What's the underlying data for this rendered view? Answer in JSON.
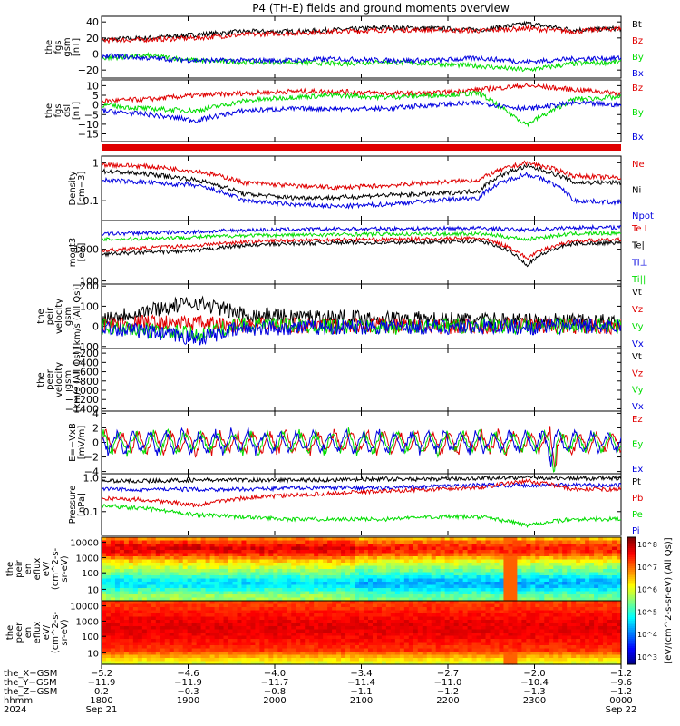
{
  "title": "P4 (TH-E) fields and ground moments overview",
  "colors": {
    "black": "#000000",
    "red": "#e00000",
    "green": "#00dd00",
    "blue": "#0000e0",
    "cyan": "#00c8ff"
  },
  "panels": [
    {
      "id": "fgs_gsm",
      "ylabel": [
        "the",
        "fgs",
        "gsm",
        "[nT]"
      ],
      "ticks": [
        "40",
        "20",
        "0",
        "−20"
      ],
      "tick_values": [
        40,
        20,
        0,
        -20
      ],
      "ylim": [
        -30,
        47
      ],
      "legend": [
        {
          "name": "Bt",
          "color": "black"
        },
        {
          "name": "Bz",
          "color": "red"
        },
        {
          "name": "By",
          "color": "green"
        },
        {
          "name": "Bx",
          "color": "blue"
        }
      ],
      "series": [
        {
          "name": "Bt",
          "color": "black",
          "base": [
            18,
            20,
            24,
            28,
            28,
            30,
            33,
            32,
            30,
            38,
            30,
            32
          ]
        },
        {
          "name": "Bz",
          "color": "red",
          "base": [
            17,
            18,
            20,
            24,
            26,
            28,
            30,
            30,
            29,
            32,
            28,
            32
          ]
        },
        {
          "name": "By",
          "color": "green",
          "base": [
            -5,
            -2,
            -8,
            -10,
            -10,
            -12,
            -10,
            -12,
            -15,
            -20,
            -12,
            -10
          ]
        },
        {
          "name": "Bx",
          "color": "blue",
          "base": [
            -2,
            -5,
            -8,
            -8,
            -8,
            -6,
            -8,
            -8,
            -5,
            -10,
            -6,
            -5
          ]
        }
      ]
    },
    {
      "id": "fgs_dsl",
      "ylabel": [
        "the",
        "fgs",
        "dsl",
        "[nT]"
      ],
      "ticks": [
        "10",
        "5",
        "0",
        "−5",
        "−10",
        "−15"
      ],
      "tick_values": [
        10,
        5,
        0,
        -5,
        -10,
        -15
      ],
      "ylim": [
        -19,
        13
      ],
      "legend": [
        {
          "name": "Bz",
          "color": "red"
        },
        {
          "name": "By",
          "color": "green"
        },
        {
          "name": "Bx",
          "color": "blue"
        }
      ],
      "series": [
        {
          "name": "Bz",
          "color": "red",
          "base": [
            2,
            3,
            5,
            6,
            7,
            7,
            6,
            6,
            8,
            10,
            8,
            6
          ]
        },
        {
          "name": "By",
          "color": "green",
          "base": [
            0,
            -2,
            -3,
            2,
            4,
            5,
            4,
            5,
            6,
            -10,
            3,
            4
          ]
        },
        {
          "name": "Bx",
          "color": "blue",
          "base": [
            -3,
            -5,
            -8,
            -3,
            -2,
            -2,
            -2,
            0,
            1,
            -2,
            1,
            0
          ]
        }
      ]
    },
    {
      "id": "density",
      "ylabel": [
        "Density",
        "[cm−3]"
      ],
      "ticks": [
        "1",
        "0.1"
      ],
      "tick_values": [
        1,
        0.1
      ],
      "ylim": [
        0.03,
        1.5
      ],
      "log": true,
      "legend": [
        {
          "name": "Ne",
          "color": "red"
        },
        {
          "name": "Ni",
          "color": "black"
        },
        {
          "name": "Npot",
          "color": "blue"
        }
      ],
      "series": [
        {
          "name": "Ne",
          "color": "red",
          "base": [
            0.9,
            0.8,
            0.6,
            0.3,
            0.25,
            0.22,
            0.25,
            0.3,
            0.35,
            1.0,
            0.45,
            0.4
          ]
        },
        {
          "name": "Ni",
          "color": "black",
          "base": [
            0.6,
            0.5,
            0.35,
            0.15,
            0.12,
            0.12,
            0.14,
            0.15,
            0.18,
            0.8,
            0.3,
            0.3
          ]
        },
        {
          "name": "Npot",
          "color": "blue",
          "base": [
            0.35,
            0.3,
            0.25,
            0.1,
            0.08,
            0.07,
            0.08,
            0.1,
            0.12,
            0.5,
            0.1,
            0.09
          ]
        }
      ]
    },
    {
      "id": "temp",
      "ylabel": [
        "moqt3",
        "[eV]"
      ],
      "ticks": [
        "1000",
        "100"
      ],
      "tick_values": [
        1000,
        100
      ],
      "ylim": [
        80,
        8000
      ],
      "log": true,
      "legend": [
        {
          "name": "Te⊥",
          "color": "red"
        },
        {
          "name": "Te||",
          "color": "black"
        },
        {
          "name": "Ti⊥",
          "color": "blue"
        },
        {
          "name": "Ti||",
          "color": "green"
        }
      ],
      "series": [
        {
          "name": "Ti⊥",
          "color": "blue",
          "base": [
            3000,
            3300,
            3500,
            4000,
            4200,
            4300,
            4400,
            4500,
            4600,
            4000,
            4800,
            4900
          ]
        },
        {
          "name": "Ti||",
          "color": "green",
          "base": [
            2000,
            2200,
            2400,
            2700,
            2800,
            2900,
            3000,
            3000,
            3100,
            2000,
            3100,
            3200
          ]
        },
        {
          "name": "Te⊥",
          "color": "red",
          "base": [
            900,
            1100,
            1300,
            1700,
            1900,
            2000,
            2000,
            2100,
            2200,
            500,
            1800,
            2000
          ]
        },
        {
          "name": "Te||",
          "color": "black",
          "base": [
            700,
            800,
            900,
            1300,
            1500,
            1600,
            1600,
            1700,
            1800,
            300,
            1500,
            1600
          ]
        }
      ]
    },
    {
      "id": "peir_vel",
      "ylabel": [
        "the",
        "peir",
        "velocity",
        "gsm",
        "[km/s (All Qs)]"
      ],
      "ticks": [
        "200",
        "100",
        "0",
        "−100"
      ],
      "tick_values": [
        200,
        100,
        0,
        -100
      ],
      "ylim": [
        -110,
        210
      ],
      "legend": [
        {
          "name": "Vt",
          "color": "black"
        },
        {
          "name": "Vz",
          "color": "red"
        },
        {
          "name": "Vy",
          "color": "green"
        },
        {
          "name": "Vx",
          "color": "blue"
        }
      ],
      "series": [
        {
          "name": "Vt",
          "color": "black",
          "base": [
            40,
            80,
            120,
            60,
            50,
            45,
            40,
            35,
            30,
            30,
            25,
            20
          ]
        },
        {
          "name": "Vz",
          "color": "red",
          "base": [
            10,
            20,
            15,
            5,
            5,
            0,
            5,
            0,
            0,
            5,
            0,
            0
          ]
        },
        {
          "name": "Vy",
          "color": "green",
          "base": [
            0,
            -20,
            -40,
            10,
            5,
            0,
            -5,
            0,
            5,
            0,
            0,
            0
          ]
        },
        {
          "name": "Vx",
          "color": "blue",
          "base": [
            0,
            -30,
            -60,
            -10,
            -5,
            -5,
            0,
            -5,
            0,
            -5,
            0,
            0
          ]
        }
      ]
    },
    {
      "id": "peer_vel",
      "ylabel": [
        "the",
        "peer",
        "velocity",
        "gsm",
        "[km/s (All Qs)]"
      ],
      "ticks": [
        "−200",
        "−400",
        "−600",
        "−800",
        "−1000",
        "−1200",
        "−1400"
      ],
      "tick_values": [
        -200,
        -400,
        -600,
        -800,
        -1000,
        -1200,
        -1400
      ],
      "ylim": [
        -1450,
        -100
      ],
      "legend": [
        {
          "name": "Vt",
          "color": "black"
        },
        {
          "name": "Vz",
          "color": "red"
        },
        {
          "name": "Vy",
          "color": "green"
        },
        {
          "name": "Vx",
          "color": "blue"
        }
      ],
      "series": []
    },
    {
      "id": "efield",
      "ylabel": [
        "E=−VxB",
        "[mV/m]"
      ],
      "ticks": [
        "4",
        "2",
        "0",
        "−2",
        "−4"
      ],
      "tick_values": [
        4,
        2,
        0,
        -2,
        -4
      ],
      "ylim": [
        -4.3,
        4.3
      ],
      "legend": [
        {
          "name": "Ez",
          "color": "red"
        },
        {
          "name": "Ey",
          "color": "green"
        },
        {
          "name": "Ex",
          "color": "blue"
        }
      ],
      "series": [
        {
          "name": "Ez",
          "color": "red",
          "base": [
            0,
            0,
            0,
            0,
            0,
            0,
            0,
            0,
            0,
            0,
            0,
            0
          ]
        },
        {
          "name": "Ey",
          "color": "green",
          "base": [
            0,
            0,
            0,
            0,
            0,
            0,
            0,
            0,
            0,
            0,
            0,
            0
          ]
        },
        {
          "name": "Ex",
          "color": "blue",
          "base": [
            0,
            0,
            0,
            0,
            0,
            0,
            0,
            0,
            0,
            0,
            0,
            0
          ]
        }
      ]
    },
    {
      "id": "pressure",
      "ylabel": [
        "Pressure",
        "[nPa]"
      ],
      "ticks": [
        "1.0",
        "0.1"
      ],
      "tick_values": [
        1.0,
        0.1
      ],
      "ylim": [
        0.02,
        1.3
      ],
      "log": true,
      "legend": [
        {
          "name": "Pt",
          "color": "black"
        },
        {
          "name": "Pb",
          "color": "red"
        },
        {
          "name": "Pe",
          "color": "green"
        },
        {
          "name": "Pi",
          "color": "blue"
        }
      ],
      "series": [
        {
          "name": "Pt",
          "color": "black",
          "base": [
            0.8,
            0.8,
            0.85,
            0.85,
            0.85,
            0.85,
            0.9,
            0.9,
            0.95,
            1.0,
            0.95,
            0.95
          ]
        },
        {
          "name": "Pi",
          "color": "blue",
          "base": [
            0.45,
            0.45,
            0.45,
            0.45,
            0.5,
            0.5,
            0.5,
            0.55,
            0.6,
            0.6,
            0.6,
            0.6
          ]
        },
        {
          "name": "Pb",
          "color": "red",
          "base": [
            0.25,
            0.22,
            0.15,
            0.25,
            0.3,
            0.35,
            0.4,
            0.45,
            0.5,
            0.8,
            0.45,
            0.45
          ]
        },
        {
          "name": "Pe",
          "color": "green",
          "base": [
            0.15,
            0.12,
            0.08,
            0.07,
            0.06,
            0.06,
            0.06,
            0.07,
            0.07,
            0.04,
            0.06,
            0.06
          ]
        }
      ]
    }
  ],
  "spectrograms": [
    {
      "id": "peir_eflux",
      "ylabel": [
        "the",
        "peir",
        "en",
        "eflux",
        "eV/",
        "(cm^2-s-",
        "sr-eV)"
      ],
      "ticks": [
        "10000",
        "1000",
        "100",
        "10"
      ]
    },
    {
      "id": "peer_eflux",
      "ylabel": [
        "the",
        "peer",
        "en",
        "eflux",
        "eV/",
        "(cm^2-s-",
        "sr-eV)"
      ],
      "ticks": [
        "10000",
        "1000",
        "100",
        "10"
      ]
    }
  ],
  "colorbar": {
    "ticks": [
      "10^8",
      "10^7",
      "10^6",
      "10^5",
      "10^4",
      "10^3"
    ],
    "label": "[eV/(cm^2-s-sr-eV) (All Qs)]"
  },
  "xaxis": {
    "row_labels": [
      "the_X−GSM",
      "the_Y−GSM",
      "the_Z−GSM",
      "hhmm",
      "2024"
    ],
    "columns": [
      {
        "x": "−5.2",
        "y": "−11.9",
        "z": "0.2",
        "hhmm": "1800",
        "date": "Sep 21"
      },
      {
        "x": "−4.6",
        "y": "−11.9",
        "z": "−0.3",
        "hhmm": "1900",
        "date": ""
      },
      {
        "x": "−4.0",
        "y": "−11.7",
        "z": "−0.8",
        "hhmm": "2000",
        "date": ""
      },
      {
        "x": "−3.4",
        "y": "−11.4",
        "z": "−1.1",
        "hhmm": "2100",
        "date": ""
      },
      {
        "x": "−2.7",
        "y": "−11.0",
        "z": "−1.2",
        "hhmm": "2200",
        "date": ""
      },
      {
        "x": "−2.0",
        "y": "−10.4",
        "z": "−1.3",
        "hhmm": "2300",
        "date": ""
      },
      {
        "x": "−1.2",
        "y": "−9.6",
        "z": "−1.2",
        "hhmm": "0000",
        "date": "Sep 22"
      }
    ]
  }
}
